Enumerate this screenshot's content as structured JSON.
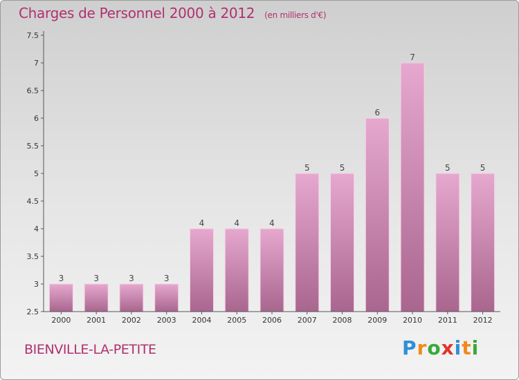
{
  "header": {
    "title": "Charges de Personnel 2000 à 2012",
    "subtitle": "(en milliers d'€)"
  },
  "footer": {
    "commune": "BIENVILLE-LA-PETITE",
    "logo": {
      "letters": [
        "P",
        "r",
        "o",
        "x",
        "i",
        "t",
        "i"
      ],
      "colors": [
        "#2f8fd6",
        "#f08a1c",
        "#3aa83a",
        "#e0352b",
        "#2f8fd6",
        "#f08a1c",
        "#3aa83a"
      ]
    }
  },
  "colors": {
    "bar_top": "#e6a8cf",
    "bar_bottom": "#a9668f",
    "title": "#b0306f",
    "axis": "#555555"
  },
  "chart_data": {
    "type": "bar",
    "categories": [
      "2000",
      "2001",
      "2002",
      "2003",
      "2004",
      "2005",
      "2006",
      "2007",
      "2008",
      "2009",
      "2010",
      "2011",
      "2012"
    ],
    "values": [
      3,
      3,
      3,
      3,
      4,
      4,
      4,
      5,
      5,
      6,
      7,
      5,
      5
    ],
    "value_labels": [
      "3",
      "3",
      "3",
      "3",
      "4",
      "4",
      "4",
      "5",
      "5",
      "6",
      "7",
      "5",
      "5"
    ],
    "ylim": [
      2.5,
      7.5
    ],
    "yticks": [
      2.5,
      3,
      3.5,
      4,
      4.5,
      5,
      5.5,
      6,
      6.5,
      7,
      7.5
    ],
    "ytick_labels": [
      "2.5",
      "3",
      "3.5",
      "4",
      "4.5",
      "5",
      "5.5",
      "6",
      "6.5",
      "7",
      "7.5"
    ],
    "grid": false,
    "title": "Charges de Personnel 2000 à 2012",
    "xlabel": "",
    "ylabel": ""
  }
}
